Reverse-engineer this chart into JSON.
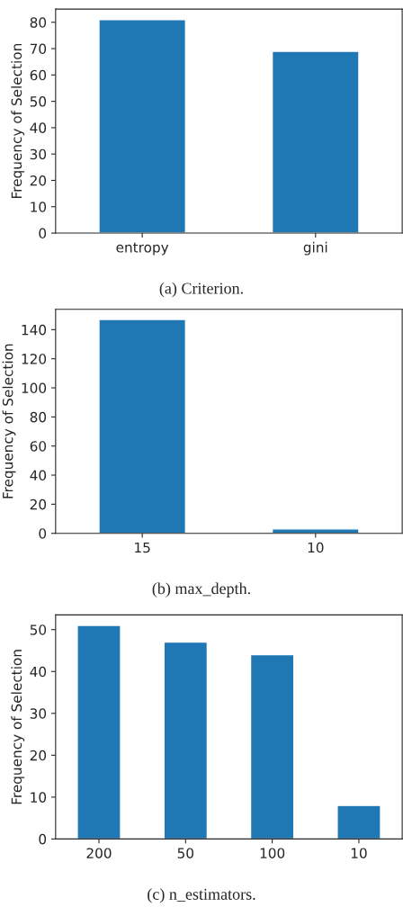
{
  "chart_data": [
    {
      "type": "bar",
      "categories": [
        "entropy",
        "gini"
      ],
      "values": [
        81,
        69
      ],
      "color": "#1f77b4",
      "ylabel": "Frequency of Selection",
      "ylim": [
        0,
        85
      ],
      "yticks": [
        0,
        10,
        20,
        30,
        40,
        50,
        60,
        70,
        80
      ],
      "annotations": [
        "(a) Criterion."
      ],
      "grid": false,
      "legend": false
    },
    {
      "type": "bar",
      "categories": [
        "15",
        "10"
      ],
      "values": [
        147,
        3
      ],
      "color": "#1f77b4",
      "ylabel": "Frequency of Selection",
      "ylim": [
        0,
        154
      ],
      "yticks": [
        0,
        20,
        40,
        60,
        80,
        100,
        120,
        140
      ],
      "annotations": [
        "(b) max_depth."
      ],
      "grid": false,
      "legend": false
    },
    {
      "type": "bar",
      "categories": [
        "200",
        "50",
        "100",
        "10"
      ],
      "values": [
        51,
        47,
        44,
        8
      ],
      "color": "#1f77b4",
      "ylabel": "Frequency of Selection",
      "ylim": [
        0,
        53.5
      ],
      "yticks": [
        0,
        10,
        20,
        30,
        40,
        50
      ],
      "annotations": [
        "(c) n_estimators."
      ],
      "grid": false,
      "legend": false
    }
  ]
}
